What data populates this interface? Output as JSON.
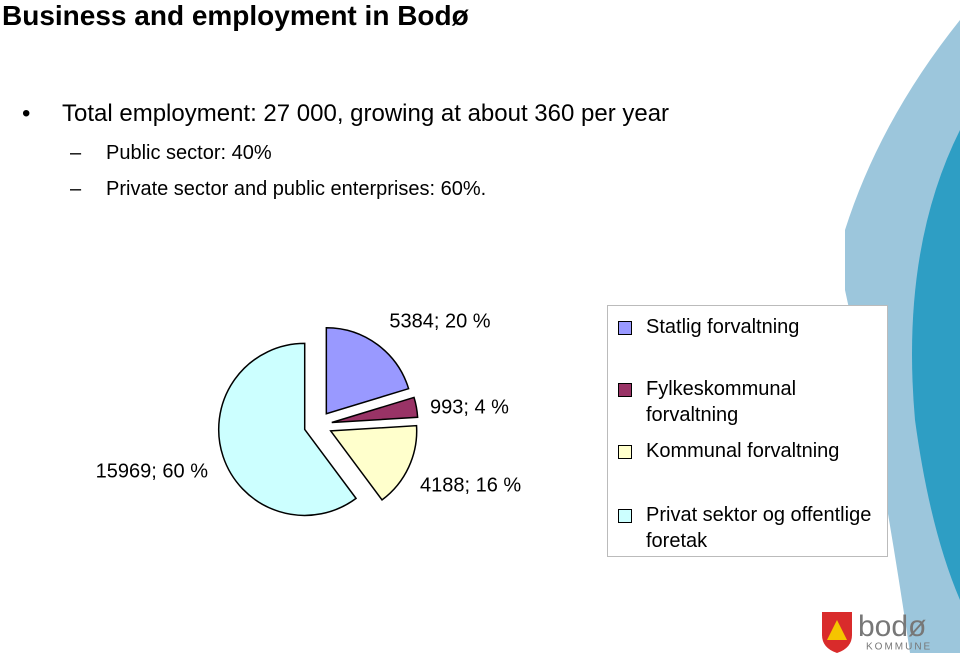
{
  "slide": {
    "title": "Business and employment in Bodø",
    "bullets": [
      "Total employment: 27 000, growing at about 360 per year"
    ],
    "sub_bullets": [
      "Public sector: 40%",
      "Private sector and public enterprises: 60%."
    ],
    "logo": {
      "name": "bodø",
      "tagline": "KOMMUNE"
    }
  },
  "chart_data": {
    "type": "pie",
    "categories": [
      "Statlig forvaltning",
      "Fylkeskommunal forvaltning",
      "Kommunal forvaltning",
      "Privat sektor og offentlige foretak"
    ],
    "values": [
      5384,
      993,
      4188,
      15969
    ],
    "value_labels": [
      "5384; 20 %",
      "993; 4 %",
      "4188; 16 %",
      "15969; 60 %"
    ],
    "colors": [
      "#9999ff",
      "#993366",
      "#ffffcc",
      "#ccffff"
    ],
    "legend": "right"
  }
}
